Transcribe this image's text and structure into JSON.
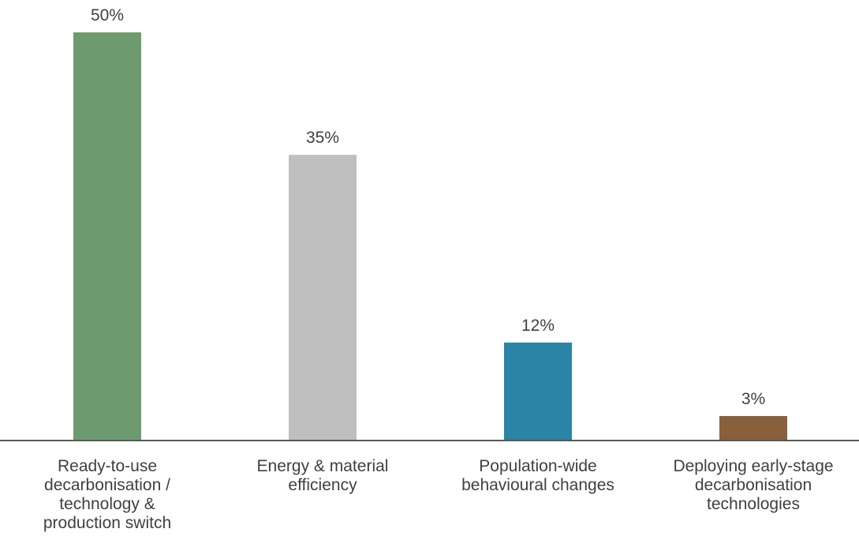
{
  "chart_data": {
    "type": "bar",
    "title": "",
    "xlabel": "",
    "ylabel": "",
    "categories": [
      [
        "Ready-to-use",
        "decarbonisation /",
        "technology &",
        "production switch"
      ],
      [
        "Energy & material",
        "efficiency"
      ],
      [
        "Population-wide",
        "behavioural changes"
      ],
      [
        "Deploying early-stage",
        "decarbonisation",
        "technologies"
      ]
    ],
    "values": [
      50,
      35,
      12,
      3
    ],
    "value_labels": [
      "50%",
      "35%",
      "12%",
      "3%"
    ],
    "colors": [
      "#6e9a6f",
      "#bfbfbf",
      "#2b84a5",
      "#8a5f3c"
    ],
    "ylim": [
      0,
      50
    ],
    "grid": false,
    "legend": "none"
  }
}
